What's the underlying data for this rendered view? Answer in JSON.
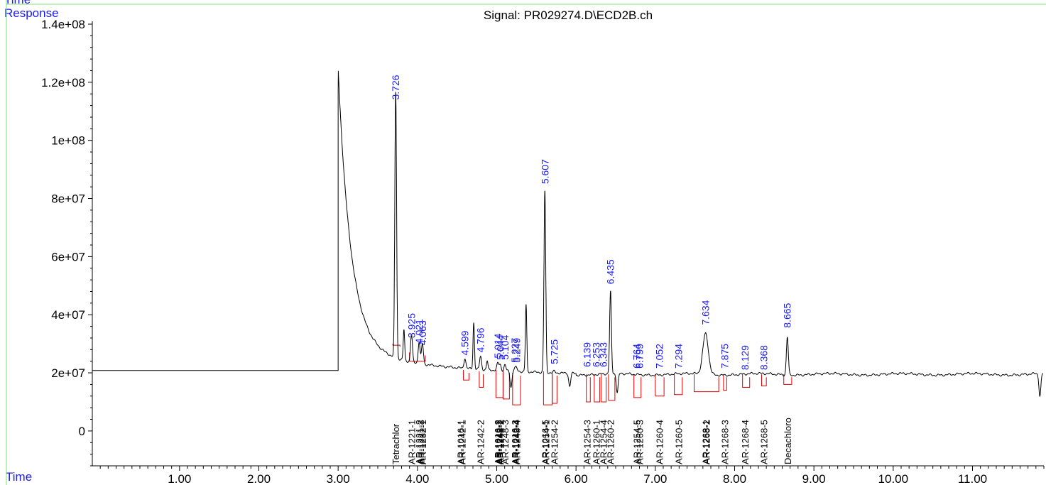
{
  "header": {
    "top_label": "Time",
    "y_label": "Response",
    "x_label": "Time",
    "signal_title": "Signal: PR029274.D\\ECD2B.ch"
  },
  "colors": {
    "trace": "#000000",
    "baseline": "#e00000",
    "peak_label": "#1a1aff",
    "frame": "#7be07b"
  },
  "chart_data": {
    "type": "line",
    "title": "Signal: PR029274.D\\ECD2B.ch",
    "xlabel": "Time",
    "ylabel": "Response",
    "xlim": [
      -0.1,
      11.9
    ],
    "ylim": [
      -12000000,
      140000000
    ],
    "x_ticks": [
      1.0,
      2.0,
      3.0,
      4.0,
      5.0,
      6.0,
      7.0,
      8.0,
      9.0,
      10.0,
      11.0
    ],
    "x_tick_labels": [
      "1.00",
      "2.00",
      "3.00",
      "4.00",
      "5.00",
      "6.00",
      "7.00",
      "8.00",
      "9.00",
      "10.00",
      "11.00"
    ],
    "y_ticks": [
      0,
      20000000,
      40000000,
      60000000,
      80000000,
      100000000,
      120000000,
      140000000
    ],
    "y_tick_labels": [
      "0",
      "2e+07",
      "4e+07",
      "6e+07",
      "8e+07",
      "1e+08",
      "1.2e+08",
      "1.4e+08"
    ],
    "baseline_response": 19500000,
    "pre_injection_response": 20800000,
    "injection_time": 3.0,
    "injection_peak_response": 117000000,
    "peaks": [
      {
        "time": 3.726,
        "label": "3.726",
        "height": 113000000
      },
      {
        "time": 3.925,
        "label": "3.925",
        "height": 31000000
      },
      {
        "time": 4.021,
        "label": "4.021",
        "height": 29000000
      },
      {
        "time": 4.063,
        "label": "4.063",
        "height": 28500000
      },
      {
        "time": 4.599,
        "label": "4.599",
        "height": 25000000
      },
      {
        "time": 4.796,
        "label": "4.796",
        "height": 26000000
      },
      {
        "time": 5.014,
        "label": "5.014",
        "height": 24000000
      },
      {
        "time": 5.044,
        "label": "5.044",
        "height": 23500000
      },
      {
        "time": 5.104,
        "label": "5.104",
        "height": 23500000
      },
      {
        "time": 5.227,
        "label": "5.227",
        "height": 22500000
      },
      {
        "time": 5.249,
        "label": "5.249",
        "height": 22500000
      },
      {
        "time": 5.607,
        "label": "5.607",
        "height": 84000000
      },
      {
        "time": 5.725,
        "label": "5.725",
        "height": 22000000
      },
      {
        "time": 6.139,
        "label": "6.139",
        "height": 21000000
      },
      {
        "time": 6.253,
        "label": "6.253",
        "height": 21000000
      },
      {
        "time": 6.343,
        "label": "6.343",
        "height": 21000000
      },
      {
        "time": 6.435,
        "label": "6.435",
        "height": 49500000
      },
      {
        "time": 6.764,
        "label": "6.764",
        "height": 20500000
      },
      {
        "time": 6.799,
        "label": "6.799",
        "height": 20500000
      },
      {
        "time": 7.052,
        "label": "7.052",
        "height": 20500000
      },
      {
        "time": 7.294,
        "label": "7.294",
        "height": 20500000
      },
      {
        "time": 7.634,
        "label": "7.634",
        "height": 35500000
      },
      {
        "time": 7.875,
        "label": "7.875",
        "height": 20500000
      },
      {
        "time": 8.129,
        "label": "8.129",
        "height": 20000000
      },
      {
        "time": 8.368,
        "label": "8.368",
        "height": 20000000
      },
      {
        "time": 8.665,
        "label": "8.665",
        "height": 34500000
      }
    ],
    "unlabeled_peaks": [
      {
        "time": 3.83,
        "height": 31500000
      },
      {
        "time": 4.71,
        "height": 37000000
      },
      {
        "time": 5.37,
        "height": 44000000
      },
      {
        "time": 4.88,
        "height": 24000000
      }
    ],
    "negative_dips": [
      {
        "time": 5.92,
        "depth": 10000000
      },
      {
        "time": 5.18,
        "depth": 12000000
      },
      {
        "time": 6.52,
        "depth": 14500000
      },
      {
        "time": 11.85,
        "depth": 17500000
      }
    ],
    "integration_baselines": [
      {
        "start": 3.69,
        "end": 3.78,
        "top": 30000000,
        "bottom": 29500000
      },
      {
        "start": 3.9,
        "end": 4.1,
        "top": 27000000,
        "bottom": 24000000
      },
      {
        "start": 4.58,
        "end": 4.65,
        "top": 21000000,
        "bottom": 17500000
      },
      {
        "start": 4.78,
        "end": 4.83,
        "top": 20500000,
        "bottom": 15000000
      },
      {
        "start": 4.99,
        "end": 5.08,
        "top": 21000000,
        "bottom": 11500000
      },
      {
        "start": 5.08,
        "end": 5.16,
        "top": 21000000,
        "bottom": 11000000
      },
      {
        "start": 5.2,
        "end": 5.3,
        "top": 20000000,
        "bottom": 9000000
      },
      {
        "start": 5.59,
        "end": 5.7,
        "top": 20500000,
        "bottom": 9000000
      },
      {
        "start": 5.7,
        "end": 5.76,
        "top": 20000000,
        "bottom": 9500000
      },
      {
        "start": 6.13,
        "end": 6.18,
        "top": 19500000,
        "bottom": 10000000
      },
      {
        "start": 6.23,
        "end": 6.3,
        "top": 19500000,
        "bottom": 10000000
      },
      {
        "start": 6.32,
        "end": 6.38,
        "top": 19500000,
        "bottom": 10000000
      },
      {
        "start": 6.41,
        "end": 6.49,
        "top": 19500000,
        "bottom": 10500000
      },
      {
        "start": 6.73,
        "end": 6.82,
        "top": 19500000,
        "bottom": 11500000
      },
      {
        "start": 7.0,
        "end": 7.11,
        "top": 19500000,
        "bottom": 12000000
      },
      {
        "start": 7.24,
        "end": 7.34,
        "top": 19500000,
        "bottom": 12500000
      },
      {
        "start": 7.49,
        "end": 7.8,
        "top": 19500000,
        "bottom": 13500000
      },
      {
        "start": 7.86,
        "end": 7.9,
        "top": 19500000,
        "bottom": 14000000
      },
      {
        "start": 8.1,
        "end": 8.19,
        "top": 19500000,
        "bottom": 15000000
      },
      {
        "start": 8.34,
        "end": 8.4,
        "top": 19500000,
        "bottom": 15500000
      },
      {
        "start": 8.62,
        "end": 8.72,
        "top": 19500000,
        "bottom": 16000000
      }
    ],
    "compounds": [
      {
        "time": 3.726,
        "name": "Tetrachlor"
      },
      {
        "time": 3.925,
        "name": "AR-1221-1"
      },
      {
        "time": 4.021,
        "name": "AR-1221-2"
      },
      {
        "time": 4.04,
        "name": "AR-1221-3"
      },
      {
        "time": 4.063,
        "name": "AR-1232-1"
      },
      {
        "time": 4.545,
        "name": "AR-1016-1"
      },
      {
        "time": 4.56,
        "name": "AR-1242-1"
      },
      {
        "time": 4.796,
        "name": "AR-1242-2"
      },
      {
        "time": 5.014,
        "name": "AR-1016-2"
      },
      {
        "time": 5.024,
        "name": "AR-1242-3"
      },
      {
        "time": 5.034,
        "name": "AR-1248-1"
      },
      {
        "time": 5.044,
        "name": "AR-1248-2"
      },
      {
        "time": 5.104,
        "name": "AR-1248-3"
      },
      {
        "time": 5.227,
        "name": "AR-1016-3"
      },
      {
        "time": 5.237,
        "name": "AR-1242-4"
      },
      {
        "time": 5.249,
        "name": "AR-1248-4"
      },
      {
        "time": 5.607,
        "name": "AR-1016-5"
      },
      {
        "time": 5.617,
        "name": "AR-1254-1"
      },
      {
        "time": 5.725,
        "name": "AR-1254-2"
      },
      {
        "time": 6.139,
        "name": "AR-1254-3"
      },
      {
        "time": 6.253,
        "name": "AR-1260-1"
      },
      {
        "time": 6.343,
        "name": "AR-1254-4"
      },
      {
        "time": 6.435,
        "name": "AR-1260-2"
      },
      {
        "time": 6.764,
        "name": "AR-1254-5"
      },
      {
        "time": 6.799,
        "name": "AR-1260-3"
      },
      {
        "time": 7.052,
        "name": "AR-1260-4"
      },
      {
        "time": 7.294,
        "name": "AR-1260-5"
      },
      {
        "time": 7.634,
        "name": "AR-1268-1"
      },
      {
        "time": 7.644,
        "name": "AR-1268-2"
      },
      {
        "time": 7.875,
        "name": "AR-1268-3"
      },
      {
        "time": 8.129,
        "name": "AR-1268-4"
      },
      {
        "time": 8.368,
        "name": "AR-1268-5"
      },
      {
        "time": 8.665,
        "name": "Decachloro"
      }
    ],
    "compound_label_response": 2000000,
    "grid": false,
    "legend": "none"
  }
}
